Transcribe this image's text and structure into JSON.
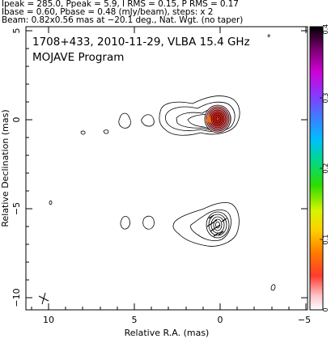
{
  "header": {
    "line1": "Ipeak = 285.0, Ppeak = 5.9, I RMS = 0.15, P RMS = 0.17",
    "line2": "Ibase = 0.60, Pbase = 0.48 (mJy/beam), steps: x 2",
    "line3": "Beam: 0.82x0.56 mas at −20.1 deg., Nat. Wgt. (no taper)"
  },
  "plot": {
    "title_line1": "1708+433, 2010-11-29, VLBA 15.4 GHz",
    "title_line2": "MOJAVE Program",
    "xlabel": "Relative R.A. (mas)",
    "ylabel": "Relative Declination (mas)",
    "x_ticks": [
      "10",
      "5",
      "0",
      "−5"
    ],
    "y_ticks": [
      "5",
      "0",
      "−5",
      "−10"
    ]
  },
  "colorbar": {
    "ticks": [
      "0",
      "0.1",
      "0.2",
      "0.3",
      "0.4"
    ],
    "colors": [
      "#ffffff",
      "#ff9da4",
      "#ff3b2e",
      "#ff7a00",
      "#ffcf00",
      "#d8f500",
      "#2cdc00",
      "#00d88e",
      "#00bfff",
      "#3d7dff",
      "#8a37ff",
      "#d100d6",
      "#7a0070",
      "#000000"
    ]
  }
}
